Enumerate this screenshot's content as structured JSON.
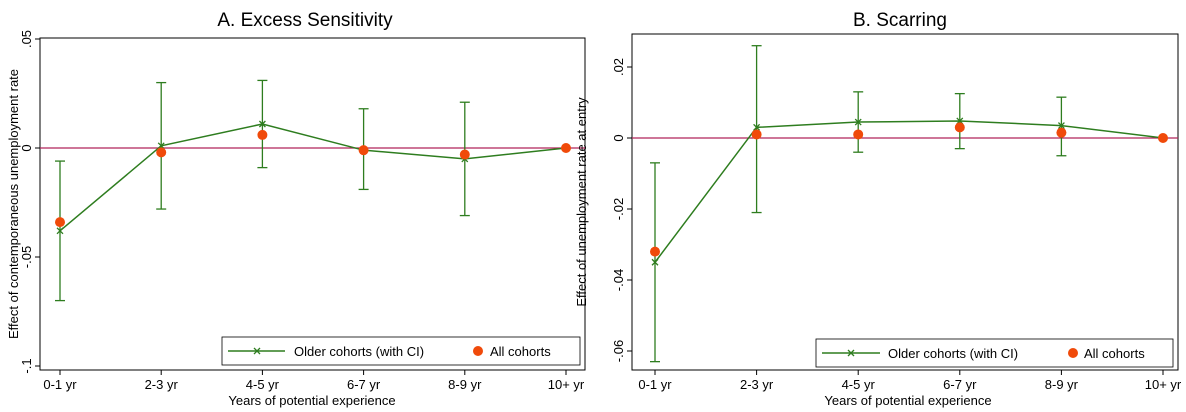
{
  "chart_data": [
    {
      "type": "line",
      "title": "A. Excess Sensitivity",
      "xlabel": "Years of potential experience",
      "ylabel": "Effect of contemporaneous unemployment rate",
      "categories": [
        "0-1 yr",
        "2-3 yr",
        "4-5 yr",
        "6-7 yr",
        "8-9 yr",
        "10+ yr"
      ],
      "ylim": [
        -0.1,
        0.05
      ],
      "yticks": [
        -0.1,
        -0.05,
        0,
        0.05
      ],
      "ytick_labels": [
        "-.1",
        "-.05",
        "0",
        ".05"
      ],
      "reference_line": 0,
      "grid": false,
      "legend_position": "bottom-right",
      "series": [
        {
          "name": "Older cohorts (with CI)",
          "style": "line-x",
          "color": "#2e7d1f",
          "values": [
            -0.038,
            0.001,
            0.011,
            -0.001,
            -0.005,
            0
          ],
          "ci_low": [
            -0.07,
            -0.028,
            -0.009,
            -0.019,
            -0.031,
            0
          ],
          "ci_high": [
            -0.006,
            0.03,
            0.031,
            0.018,
            0.021,
            0
          ]
        },
        {
          "name": "All cohorts",
          "style": "dot",
          "color": "#f04a0a",
          "values": [
            -0.034,
            -0.002,
            0.006,
            -0.001,
            -0.003,
            0
          ]
        }
      ]
    },
    {
      "type": "line",
      "title": "B. Scarring",
      "xlabel": "Years of potential experience",
      "ylabel": "Effect of unemployment rate at entry",
      "categories": [
        "0-1 yr",
        "2-3 yr",
        "4-5 yr",
        "6-7 yr",
        "8-9 yr",
        "10+ yr"
      ],
      "ylim": [
        -0.066,
        0.03
      ],
      "yticks": [
        -0.06,
        -0.04,
        -0.02,
        0,
        0.02
      ],
      "ytick_labels": [
        "-.06",
        "-.04",
        "-.02",
        "0",
        ".02"
      ],
      "reference_line": 0,
      "grid": false,
      "legend_position": "bottom-right",
      "series": [
        {
          "name": "Older cohorts (with CI)",
          "style": "line-x",
          "color": "#2e7d1f",
          "values": [
            -0.035,
            0.003,
            0.0045,
            0.0048,
            0.0035,
            0
          ],
          "ci_low": [
            -0.063,
            -0.021,
            -0.004,
            -0.003,
            -0.005,
            0
          ],
          "ci_high": [
            -0.007,
            0.026,
            0.013,
            0.0125,
            0.0115,
            0
          ]
        },
        {
          "name": "All cohorts",
          "style": "dot",
          "color": "#f04a0a",
          "values": [
            -0.032,
            0.001,
            0.001,
            0.003,
            0.0015,
            0
          ]
        }
      ]
    }
  ],
  "colors": {
    "reference_line": "#b0245a",
    "axis": "#000000"
  }
}
